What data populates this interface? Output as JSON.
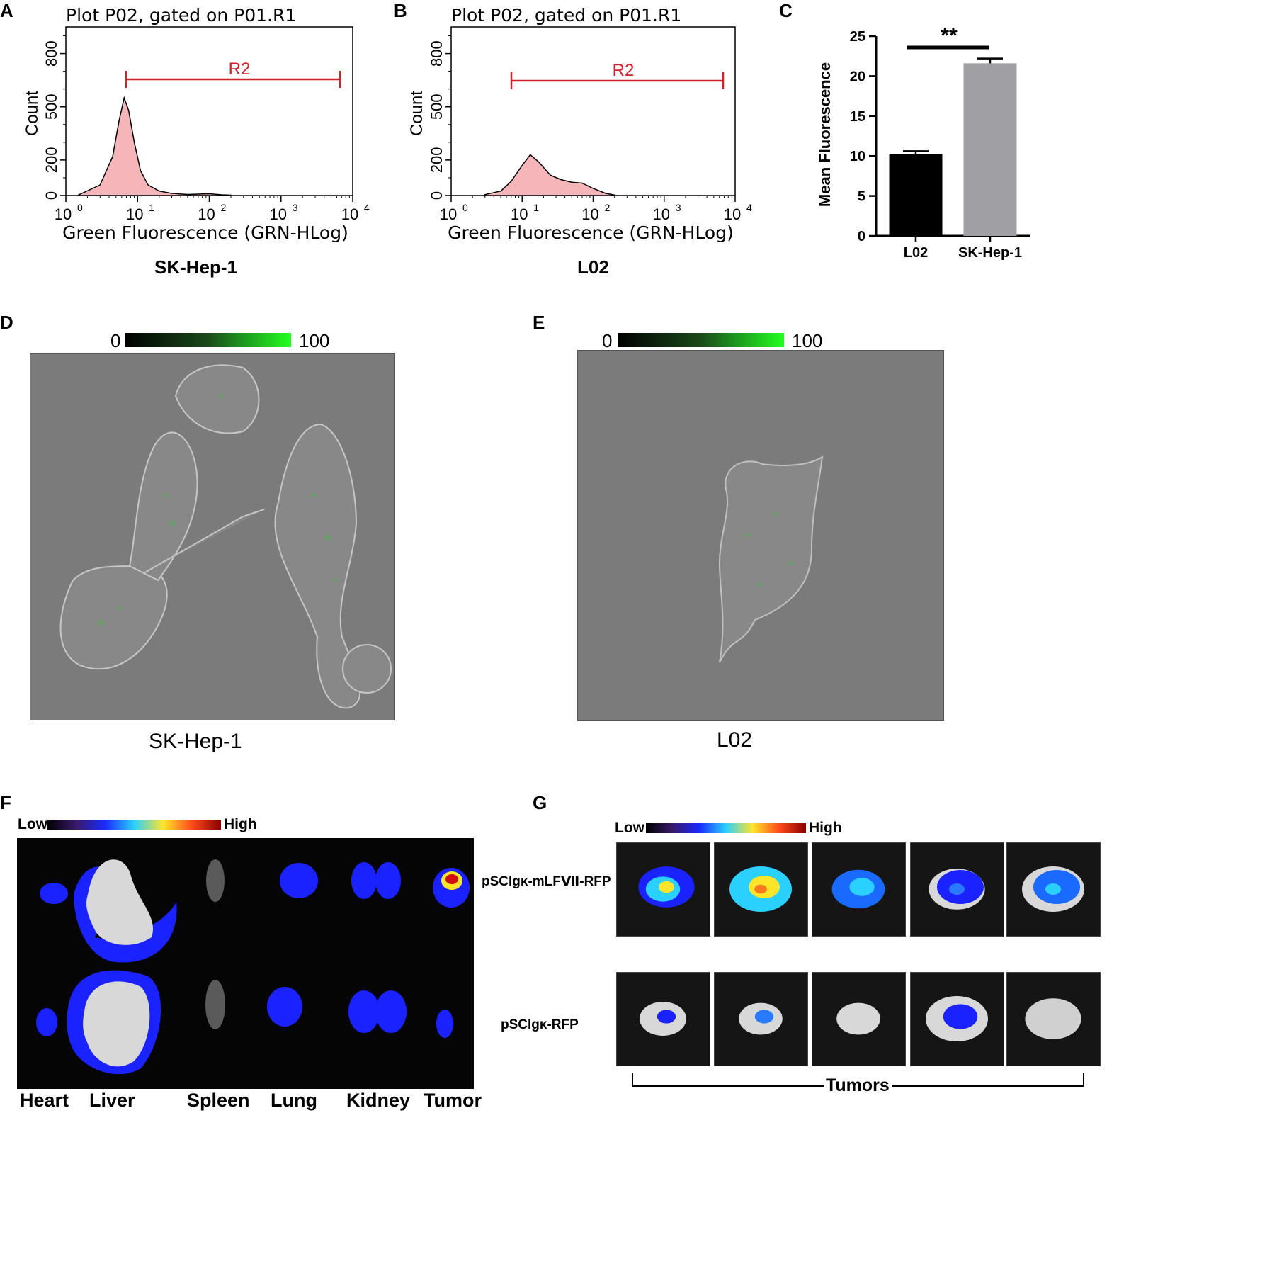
{
  "panels": {
    "A": "A",
    "B": "B",
    "C": "C",
    "D": "D",
    "E": "E",
    "F": "F",
    "G": "G"
  },
  "histogram_A": {
    "plot_title": "Plot P02, gated on P01.R1",
    "ylabel": "Count",
    "xlabel": "Green Fluorescence (GRN-HLog)",
    "yticks": [
      "0",
      "200",
      "500",
      "800"
    ],
    "xticks": [
      "10",
      "10",
      "10",
      "10",
      "10"
    ],
    "xexp": [
      "0",
      "1",
      "2",
      "3",
      "4"
    ],
    "gate_label": "R2",
    "caption": "SK-Hep-1"
  },
  "histogram_B": {
    "plot_title": "Plot P02, gated on P01.R1",
    "ylabel": "Count",
    "xlabel": "Green Fluorescence (GRN-HLog)",
    "yticks": [
      "0",
      "200",
      "500",
      "800"
    ],
    "xticks": [
      "10",
      "10",
      "10",
      "10",
      "10"
    ],
    "xexp": [
      "0",
      "1",
      "2",
      "3",
      "4"
    ],
    "gate_label": "R2",
    "caption": "L02"
  },
  "chart_data": [
    {
      "type": "area",
      "title": "Plot P02, gated on P01.R1",
      "xlabel": "Green Fluorescence (GRN-HLog)",
      "ylabel": "Count",
      "xscale": "log",
      "xlim": [
        1,
        10000
      ],
      "ylim": [
        0,
        950
      ],
      "x": [
        1.5,
        3,
        4.5,
        5.5,
        6.5,
        7.5,
        9,
        11,
        14,
        20,
        30,
        50,
        100,
        150,
        200
      ],
      "y": [
        3,
        60,
        220,
        420,
        550,
        480,
        300,
        140,
        60,
        25,
        12,
        6,
        10,
        4,
        2
      ],
      "gate": {
        "name": "R2",
        "from": 6.5,
        "to": 7000
      },
      "caption": "SK-Hep-1"
    },
    {
      "type": "area",
      "title": "Plot P02, gated on P01.R1",
      "xlabel": "Green Fluorescence (GRN-HLog)",
      "ylabel": "Count",
      "xscale": "log",
      "xlim": [
        1,
        10000
      ],
      "ylim": [
        0,
        950
      ],
      "x": [
        3,
        5,
        7,
        10,
        13,
        17,
        25,
        35,
        50,
        70,
        100,
        150,
        200
      ],
      "y": [
        5,
        25,
        80,
        170,
        230,
        190,
        115,
        90,
        75,
        70,
        40,
        12,
        3
      ],
      "gate": {
        "name": "R2",
        "from": 6.5,
        "to": 7000
      },
      "caption": "L02"
    },
    {
      "type": "bar",
      "categories": [
        "L02",
        "SK-Hep-1"
      ],
      "values": [
        10.2,
        21.6
      ],
      "errors": [
        0.4,
        0.6
      ],
      "colors": [
        "#000000",
        "#a0a0a4"
      ],
      "ylabel": "Mean Fluorescence",
      "ylim": [
        0,
        25
      ],
      "yticks": [
        "0",
        "5",
        "10",
        "15",
        "20",
        "25"
      ],
      "significance": "**"
    }
  ],
  "bar_chart": {
    "ylabel": "Mean Fluorescence",
    "yticks": [
      "0",
      "5",
      "10",
      "15",
      "20",
      "25"
    ],
    "categories": [
      "L02",
      "SK-Hep-1"
    ],
    "significance": "**"
  },
  "panel_D": {
    "scale_min": "0",
    "scale_max": "100",
    "caption": "SK-Hep-1"
  },
  "panel_E": {
    "scale_min": "0",
    "scale_max": "100",
    "caption": "L02"
  },
  "panel_F": {
    "scale_low": "Low",
    "scale_high": "High",
    "row_labels": [
      "pSCIgκ-mLFⅦ-RFP",
      "pSCIgκ-RFP"
    ],
    "organs": [
      "Heart",
      "Liver",
      "Spleen",
      "Lung",
      "Kidney",
      "Tumor"
    ]
  },
  "panel_G": {
    "scale_low": "Low",
    "scale_high": "High",
    "bracket_label": "Tumors"
  },
  "colors": {
    "gate_red": "#d0202a",
    "histogram_fill": "#f4b6b8",
    "bar_grey": "#a0a0a4",
    "fluor_green": "#22ff22",
    "ivis_blue": "#1a22ff"
  }
}
